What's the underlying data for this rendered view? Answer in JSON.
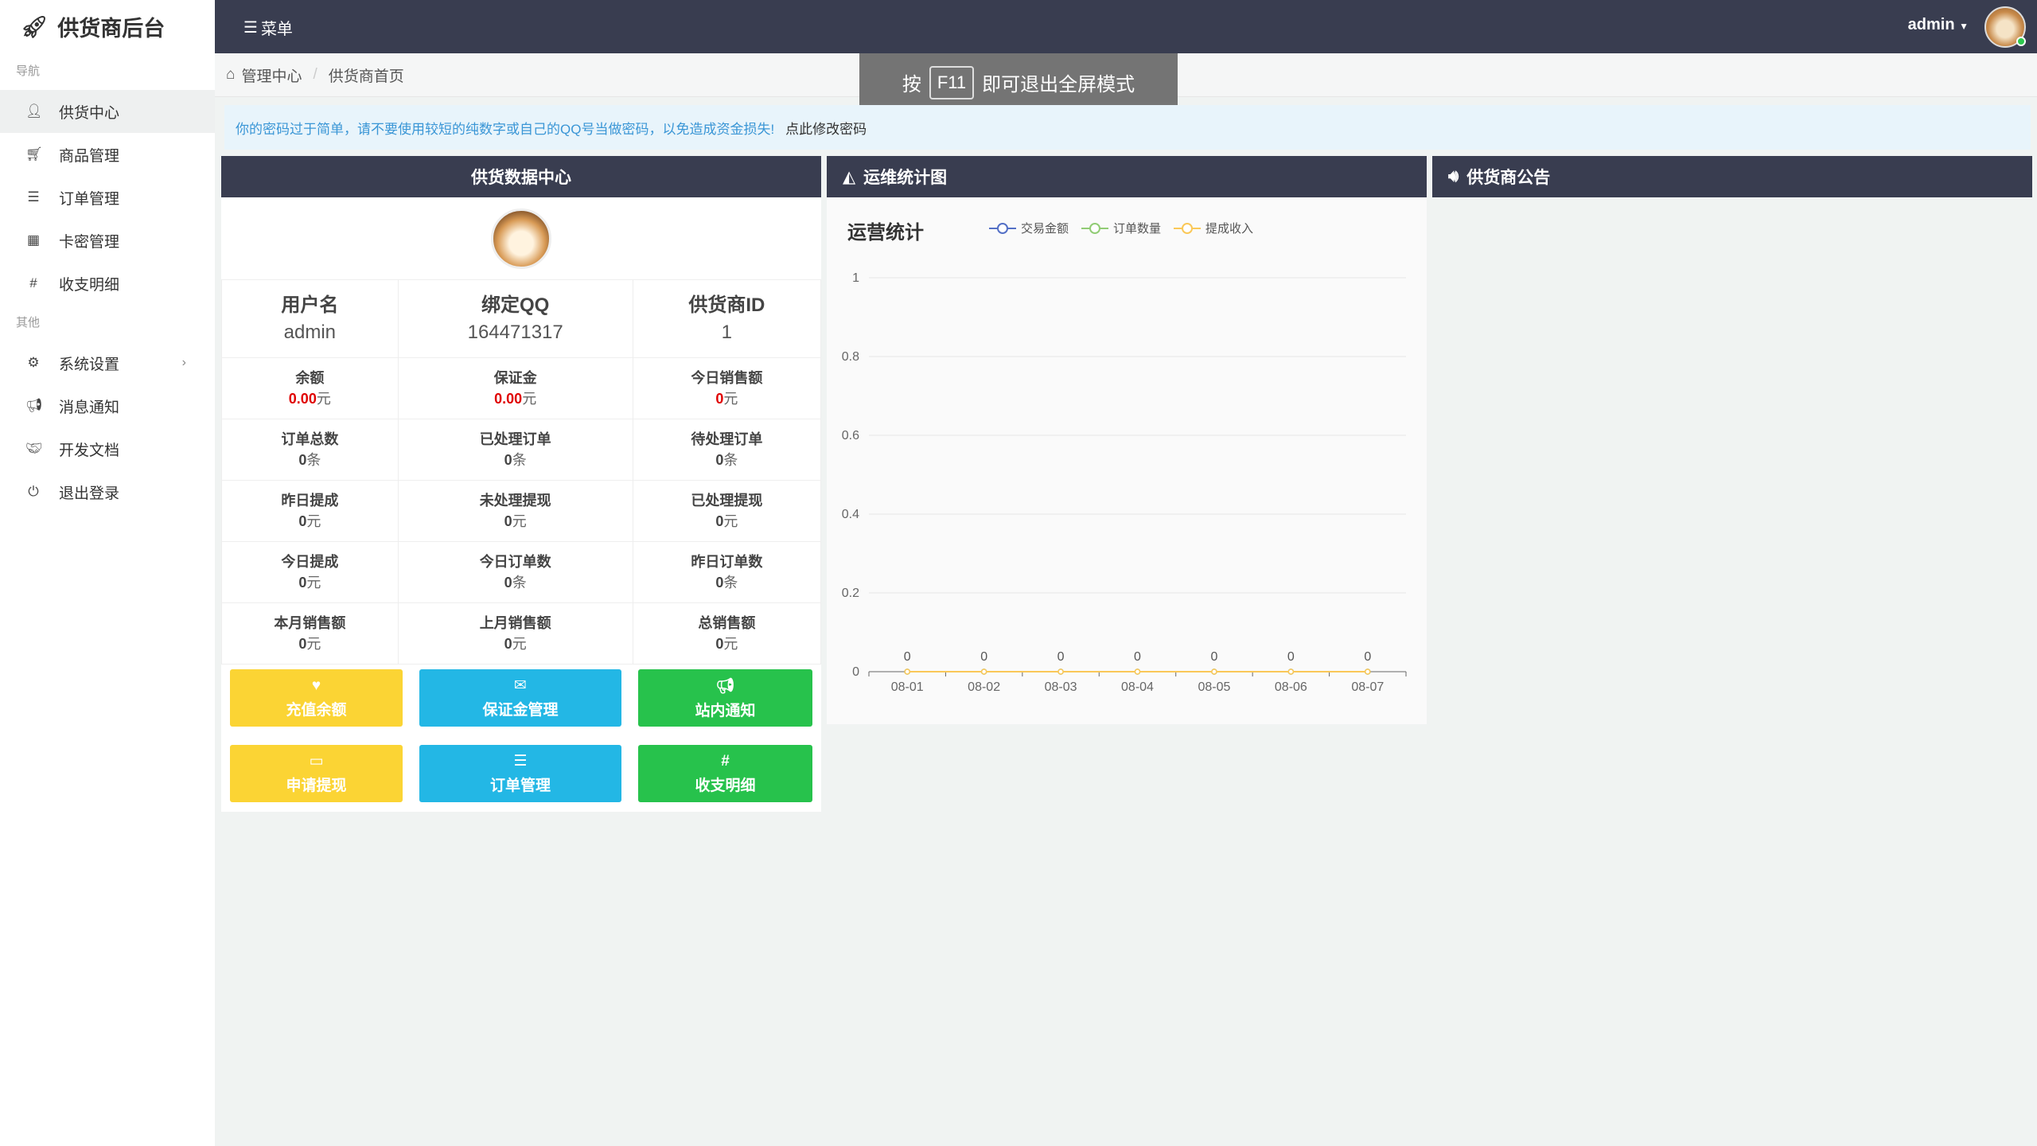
{
  "sidebar": {
    "logo": "供货商后台",
    "sections": [
      {
        "label": "导航",
        "items": [
          {
            "label": "供货中心",
            "icon": "user-icon",
            "active": true
          },
          {
            "label": "商品管理",
            "icon": "cart-icon"
          },
          {
            "label": "订单管理",
            "icon": "list-icon"
          },
          {
            "label": "卡密管理",
            "icon": "grid-icon"
          },
          {
            "label": "收支明细",
            "icon": "hash-icon"
          }
        ]
      },
      {
        "label": "其他",
        "items": [
          {
            "label": "系统设置",
            "icon": "settings-icon",
            "chevron": true
          },
          {
            "label": "消息通知",
            "icon": "bullhorn-icon"
          },
          {
            "label": "开发文档",
            "icon": "handshake-icon"
          },
          {
            "label": "退出登录",
            "icon": "power-icon"
          }
        ]
      }
    ]
  },
  "topbar": {
    "menu": "菜单",
    "user": "admin"
  },
  "breadcrumb": [
    "管理中心",
    "供货商首页"
  ],
  "fullscreen_tip": {
    "pre": "按",
    "key": "F11",
    "post": "即可退出全屏模式"
  },
  "alert": {
    "text": "你的密码过于简单，请不要使用较短的纯数字或自己的QQ号当做密码，以免造成资金损失!",
    "link": "点此修改密码"
  },
  "data_panel": {
    "title": "供货数据中心",
    "header": [
      {
        "label": "用户名",
        "value": "admin"
      },
      {
        "label": "绑定QQ",
        "value": "164471317"
      },
      {
        "label": "供货商ID",
        "value": "1"
      }
    ],
    "rows": [
      [
        {
          "label": "余额",
          "value": "0.00",
          "unit": "元",
          "red": true
        },
        {
          "label": "保证金",
          "value": "0.00",
          "unit": "元",
          "red": true
        },
        {
          "label": "今日销售额",
          "value": "0",
          "unit": "元",
          "red": true
        }
      ],
      [
        {
          "label": "订单总数",
          "value": "0",
          "unit": "条"
        },
        {
          "label": "已处理订单",
          "value": "0",
          "unit": "条"
        },
        {
          "label": "待处理订单",
          "value": "0",
          "unit": "条"
        }
      ],
      [
        {
          "label": "昨日提成",
          "value": "0",
          "unit": "元"
        },
        {
          "label": "未处理提现",
          "value": "0",
          "unit": "元"
        },
        {
          "label": "已处理提现",
          "value": "0",
          "unit": "元"
        }
      ],
      [
        {
          "label": "今日提成",
          "value": "0",
          "unit": "元"
        },
        {
          "label": "今日订单数",
          "value": "0",
          "unit": "条"
        },
        {
          "label": "昨日订单数",
          "value": "0",
          "unit": "条"
        }
      ],
      [
        {
          "label": "本月销售额",
          "value": "0",
          "unit": "元"
        },
        {
          "label": "上月销售额",
          "value": "0",
          "unit": "元"
        },
        {
          "label": "总销售额",
          "value": "0",
          "unit": "元"
        }
      ]
    ],
    "buttons": [
      {
        "label": "充值余额",
        "icon": "heartbeat-icon",
        "color": "#fbd434"
      },
      {
        "label": "保证金管理",
        "icon": "envelope-icon",
        "color": "#23b7e5"
      },
      {
        "label": "站内通知",
        "icon": "bullhorn-icon",
        "color": "#27c24c"
      },
      {
        "label": "申请提现",
        "icon": "credit-card-icon",
        "color": "#fbd434"
      },
      {
        "label": "订单管理",
        "icon": "list-icon",
        "color": "#23b7e5"
      },
      {
        "label": "收支明细",
        "icon": "hash-icon",
        "color": "#27c24c"
      }
    ]
  },
  "chart_panel": {
    "title": "运维统计图"
  },
  "notice_panel": {
    "title": "供货商公告"
  },
  "chart_data": {
    "type": "line",
    "title": "运营统计",
    "categories": [
      "08-01",
      "08-02",
      "08-03",
      "08-04",
      "08-05",
      "08-06",
      "08-07"
    ],
    "series": [
      {
        "name": "交易金额",
        "color": "#5470c6",
        "values": [
          0,
          0,
          0,
          0,
          0,
          0,
          0
        ]
      },
      {
        "name": "订单数量",
        "color": "#91cc75",
        "values": [
          0,
          0,
          0,
          0,
          0,
          0,
          0
        ]
      },
      {
        "name": "提成收入",
        "color": "#fac858",
        "values": [
          0,
          0,
          0,
          0,
          0,
          0,
          0
        ]
      }
    ],
    "yticks": [
      0,
      0.2,
      0.4,
      0.6,
      0.8,
      1
    ],
    "ylim": [
      0,
      1
    ],
    "grid": true,
    "legend": "top",
    "data_labels": true
  }
}
